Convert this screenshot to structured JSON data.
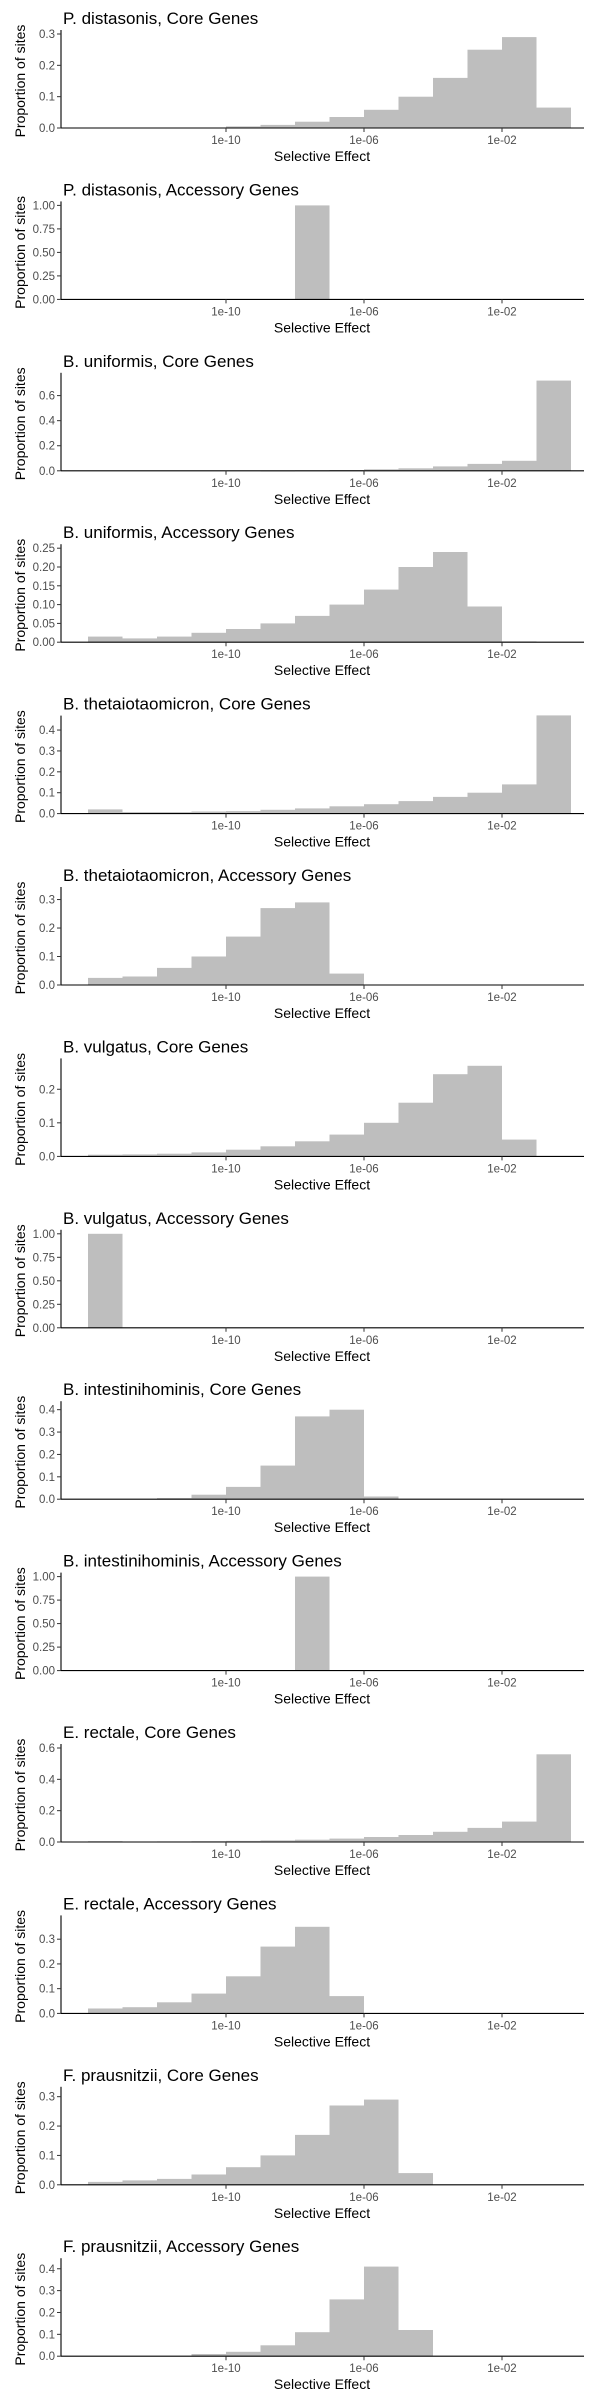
{
  "style": {
    "bar_color": "#bebebe",
    "axis_color": "#000000",
    "tick_text_color": "#4d4d4d",
    "background": "#ffffff"
  },
  "chart_data": [
    {
      "type": "bar",
      "title": "P. distasonis, Core Genes",
      "xlabel": "Selective Effect",
      "ylabel": "Proportion of sites",
      "x_scale": "log10",
      "x_ticks": [
        "1e-10",
        "1e-06",
        "1e-02"
      ],
      "yticks": [
        0.0,
        0.1,
        0.2,
        0.3
      ],
      "ytick_labels": [
        "0.0",
        "0.1",
        "0.2",
        "0.3"
      ],
      "ylim": [
        0,
        0.3
      ],
      "bin_log10_edges": [
        -14,
        -13,
        -12,
        -11,
        -10,
        -9,
        -8,
        -7,
        -6,
        -5,
        -4,
        -3,
        -2,
        -1
      ],
      "values": [
        0.0,
        0.0,
        0.0,
        0.001,
        0.005,
        0.01,
        0.02,
        0.035,
        0.058,
        0.1,
        0.16,
        0.25,
        0.29,
        0.065
      ],
      "grid": false
    },
    {
      "type": "bar",
      "title": "P. distasonis, Accessory Genes",
      "xlabel": "Selective Effect",
      "ylabel": "Proportion of sites",
      "x_scale": "log10",
      "x_ticks": [
        "1e-10",
        "1e-06",
        "1e-02"
      ],
      "yticks": [
        0.0,
        0.25,
        0.5,
        0.75,
        1.0
      ],
      "ytick_labels": [
        "0.00",
        "0.25",
        "0.50",
        "0.75",
        "1.00"
      ],
      "ylim": [
        0,
        1.0
      ],
      "bin_log10_edges": [
        -14,
        -13,
        -12,
        -11,
        -10,
        -9,
        -8,
        -7,
        -6,
        -5,
        -4,
        -3,
        -2,
        -1
      ],
      "values": [
        0,
        0,
        0,
        0,
        0,
        0,
        1.0,
        0,
        0,
        0,
        0,
        0,
        0,
        0
      ],
      "grid": false
    },
    {
      "type": "bar",
      "title": "B. uniformis, Core Genes",
      "xlabel": "Selective Effect",
      "ylabel": "Proportion of sites",
      "x_scale": "log10",
      "x_ticks": [
        "1e-10",
        "1e-06",
        "1e-02"
      ],
      "yticks": [
        0.0,
        0.2,
        0.4,
        0.6
      ],
      "ytick_labels": [
        "0.0",
        "0.2",
        "0.4",
        "0.6"
      ],
      "ylim": [
        0,
        0.75
      ],
      "bin_log10_edges": [
        -14,
        -13,
        -12,
        -11,
        -10,
        -9,
        -8,
        -7,
        -6,
        -5,
        -4,
        -3,
        -2,
        -1
      ],
      "values": [
        0,
        0,
        0,
        0,
        0,
        0.001,
        0.003,
        0.006,
        0.012,
        0.02,
        0.035,
        0.055,
        0.08,
        0.72
      ],
      "grid": false
    },
    {
      "type": "bar",
      "title": "B. uniformis, Accessory Genes",
      "xlabel": "Selective Effect",
      "ylabel": "Proportion of sites",
      "x_scale": "log10",
      "x_ticks": [
        "1e-10",
        "1e-06",
        "1e-02"
      ],
      "yticks": [
        0.0,
        0.05,
        0.1,
        0.15,
        0.2,
        0.25
      ],
      "ytick_labels": [
        "0.00",
        "0.05",
        "0.10",
        "0.15",
        "0.20",
        "0.25"
      ],
      "ylim": [
        0,
        0.25
      ],
      "bin_log10_edges": [
        -14,
        -13,
        -12,
        -11,
        -10,
        -9,
        -8,
        -7,
        -6,
        -5,
        -4,
        -3,
        -2,
        -1
      ],
      "values": [
        0.015,
        0.01,
        0.015,
        0.025,
        0.035,
        0.05,
        0.07,
        0.1,
        0.14,
        0.2,
        0.24,
        0.095,
        0.002,
        0
      ],
      "grid": false
    },
    {
      "type": "bar",
      "title": "B. thetaiotaomicron, Core Genes",
      "xlabel": "Selective Effect",
      "ylabel": "Proportion of sites",
      "x_scale": "log10",
      "x_ticks": [
        "1e-10",
        "1e-06",
        "1e-02"
      ],
      "yticks": [
        0.0,
        0.1,
        0.2,
        0.3,
        0.4
      ],
      "ytick_labels": [
        "0.0",
        "0.1",
        "0.2",
        "0.3",
        "0.4"
      ],
      "ylim": [
        0,
        0.45
      ],
      "bin_log10_edges": [
        -14,
        -13,
        -12,
        -11,
        -10,
        -9,
        -8,
        -7,
        -6,
        -5,
        -4,
        -3,
        -2,
        -1
      ],
      "values": [
        0.02,
        0.007,
        0.007,
        0.01,
        0.012,
        0.018,
        0.025,
        0.035,
        0.045,
        0.06,
        0.08,
        0.1,
        0.14,
        0.47
      ],
      "grid": false
    },
    {
      "type": "bar",
      "title": "B. thetaiotaomicron, Accessory Genes",
      "xlabel": "Selective Effect",
      "ylabel": "Proportion of sites",
      "x_scale": "log10",
      "x_ticks": [
        "1e-10",
        "1e-06",
        "1e-02"
      ],
      "yticks": [
        0.0,
        0.1,
        0.2,
        0.3
      ],
      "ytick_labels": [
        "0.0",
        "0.1",
        "0.2",
        "0.3"
      ],
      "ylim": [
        0,
        0.33
      ],
      "bin_log10_edges": [
        -14,
        -13,
        -12,
        -11,
        -10,
        -9,
        -8,
        -7,
        -6,
        -5,
        -4,
        -3,
        -2,
        -1
      ],
      "values": [
        0.025,
        0.03,
        0.06,
        0.1,
        0.17,
        0.27,
        0.29,
        0.04,
        0,
        0,
        0,
        0,
        0,
        0
      ],
      "grid": false
    },
    {
      "type": "bar",
      "title": "B. vulgatus, Core Genes",
      "xlabel": "Selective Effect",
      "ylabel": "Proportion of sites",
      "x_scale": "log10",
      "x_ticks": [
        "1e-10",
        "1e-06",
        "1e-02"
      ],
      "yticks": [
        0.0,
        0.1,
        0.2
      ],
      "ytick_labels": [
        "0.0",
        "0.1",
        "0.2"
      ],
      "ylim": [
        0,
        0.28
      ],
      "bin_log10_edges": [
        -14,
        -13,
        -12,
        -11,
        -10,
        -9,
        -8,
        -7,
        -6,
        -5,
        -4,
        -3,
        -2,
        -1
      ],
      "values": [
        0.005,
        0.006,
        0.008,
        0.012,
        0.02,
        0.03,
        0.045,
        0.065,
        0.1,
        0.16,
        0.245,
        0.27,
        0.05,
        0
      ],
      "grid": false
    },
    {
      "type": "bar",
      "title": "B. vulgatus, Accessory Genes",
      "xlabel": "Selective Effect",
      "ylabel": "Proportion of sites",
      "x_scale": "log10",
      "x_ticks": [
        "1e-10",
        "1e-06",
        "1e-02"
      ],
      "yticks": [
        0.0,
        0.25,
        0.5,
        0.75,
        1.0
      ],
      "ytick_labels": [
        "0.00",
        "0.25",
        "0.50",
        "0.75",
        "1.00"
      ],
      "ylim": [
        0,
        1.0
      ],
      "bin_log10_edges": [
        -14,
        -13,
        -12,
        -11,
        -10,
        -9,
        -8,
        -7,
        -6,
        -5,
        -4,
        -3,
        -2,
        -1
      ],
      "values": [
        1.0,
        0,
        0,
        0,
        0,
        0,
        0,
        0,
        0,
        0,
        0,
        0,
        0,
        0
      ],
      "grid": false
    },
    {
      "type": "bar",
      "title": "B. intestinihominis, Core Genes",
      "xlabel": "Selective Effect",
      "ylabel": "Proportion of sites",
      "x_scale": "log10",
      "x_ticks": [
        "1e-10",
        "1e-06",
        "1e-02"
      ],
      "yticks": [
        0.0,
        0.1,
        0.2,
        0.3,
        0.4
      ],
      "ytick_labels": [
        "0.0",
        "0.1",
        "0.2",
        "0.3",
        "0.4"
      ],
      "ylim": [
        0,
        0.42
      ],
      "bin_log10_edges": [
        -14,
        -13,
        -12,
        -11,
        -10,
        -9,
        -8,
        -7,
        -6,
        -5,
        -4,
        -3,
        -2,
        -1
      ],
      "values": [
        0,
        0,
        0.005,
        0.02,
        0.055,
        0.15,
        0.37,
        0.4,
        0.012,
        0,
        0,
        0,
        0,
        0
      ],
      "grid": false
    },
    {
      "type": "bar",
      "title": "B. intestinihominis, Accessory Genes",
      "xlabel": "Selective Effect",
      "ylabel": "Proportion of sites",
      "x_scale": "log10",
      "x_ticks": [
        "1e-10",
        "1e-06",
        "1e-02"
      ],
      "yticks": [
        0.0,
        0.25,
        0.5,
        0.75,
        1.0
      ],
      "ytick_labels": [
        "0.00",
        "0.25",
        "0.50",
        "0.75",
        "1.00"
      ],
      "ylim": [
        0,
        1.0
      ],
      "bin_log10_edges": [
        -14,
        -13,
        -12,
        -11,
        -10,
        -9,
        -8,
        -7,
        -6,
        -5,
        -4,
        -3,
        -2,
        -1
      ],
      "values": [
        0,
        0,
        0,
        0,
        0,
        0,
        1.0,
        0,
        0,
        0,
        0,
        0,
        0,
        0
      ],
      "grid": false
    },
    {
      "type": "bar",
      "title": "E. rectale, Core Genes",
      "xlabel": "Selective Effect",
      "ylabel": "Proportion of sites",
      "x_scale": "log10",
      "x_ticks": [
        "1e-10",
        "1e-06",
        "1e-02"
      ],
      "yticks": [
        0.0,
        0.2,
        0.4,
        0.6
      ],
      "ytick_labels": [
        "0.0",
        "0.2",
        "0.4",
        "0.6"
      ],
      "ylim": [
        0,
        0.6
      ],
      "bin_log10_edges": [
        -14,
        -13,
        -12,
        -11,
        -10,
        -9,
        -8,
        -7,
        -6,
        -5,
        -4,
        -3,
        -2,
        -1
      ],
      "values": [
        0.005,
        0,
        0.004,
        0.005,
        0.007,
        0.01,
        0.015,
        0.022,
        0.032,
        0.045,
        0.065,
        0.09,
        0.13,
        0.56
      ],
      "grid": false
    },
    {
      "type": "bar",
      "title": "E. rectale, Accessory Genes",
      "xlabel": "Selective Effect",
      "ylabel": "Proportion of sites",
      "x_scale": "log10",
      "x_ticks": [
        "1e-10",
        "1e-06",
        "1e-02"
      ],
      "yticks": [
        0.0,
        0.1,
        0.2,
        0.3
      ],
      "ytick_labels": [
        "0.0",
        "0.1",
        "0.2",
        "0.3"
      ],
      "ylim": [
        0,
        0.38
      ],
      "bin_log10_edges": [
        -14,
        -13,
        -12,
        -11,
        -10,
        -9,
        -8,
        -7,
        -6,
        -5,
        -4,
        -3,
        -2,
        -1
      ],
      "values": [
        0.02,
        0.025,
        0.045,
        0.08,
        0.15,
        0.27,
        0.35,
        0.07,
        0,
        0,
        0,
        0,
        0,
        0
      ],
      "grid": false
    },
    {
      "type": "bar",
      "title": "F. prausnitzii, Core Genes",
      "xlabel": "Selective Effect",
      "ylabel": "Proportion of sites",
      "x_scale": "log10",
      "x_ticks": [
        "1e-10",
        "1e-06",
        "1e-02"
      ],
      "yticks": [
        0.0,
        0.1,
        0.2,
        0.3
      ],
      "ytick_labels": [
        "0.0",
        "0.1",
        "0.2",
        "0.3"
      ],
      "ylim": [
        0,
        0.32
      ],
      "bin_log10_edges": [
        -14,
        -13,
        -12,
        -11,
        -10,
        -9,
        -8,
        -7,
        -6,
        -5,
        -4,
        -3,
        -2,
        -1
      ],
      "values": [
        0.01,
        0.015,
        0.02,
        0.035,
        0.06,
        0.1,
        0.17,
        0.27,
        0.29,
        0.04,
        0,
        0,
        0,
        0
      ],
      "grid": false
    },
    {
      "type": "bar",
      "title": "F. prausnitzii, Accessory Genes",
      "xlabel": "Selective Effect",
      "ylabel": "Proportion of sites",
      "x_scale": "log10",
      "x_ticks": [
        "1e-10",
        "1e-06",
        "1e-02"
      ],
      "yticks": [
        0.0,
        0.1,
        0.2,
        0.3,
        0.4
      ],
      "ytick_labels": [
        "0.0",
        "0.1",
        "0.2",
        "0.3",
        "0.4"
      ],
      "ylim": [
        0,
        0.43
      ],
      "bin_log10_edges": [
        -14,
        -13,
        -12,
        -11,
        -10,
        -9,
        -8,
        -7,
        -6,
        -5,
        -4,
        -3,
        -2,
        -1
      ],
      "values": [
        0,
        0,
        0,
        0.01,
        0.02,
        0.05,
        0.11,
        0.26,
        0.41,
        0.12,
        0,
        0,
        0,
        0
      ],
      "grid": false
    }
  ]
}
